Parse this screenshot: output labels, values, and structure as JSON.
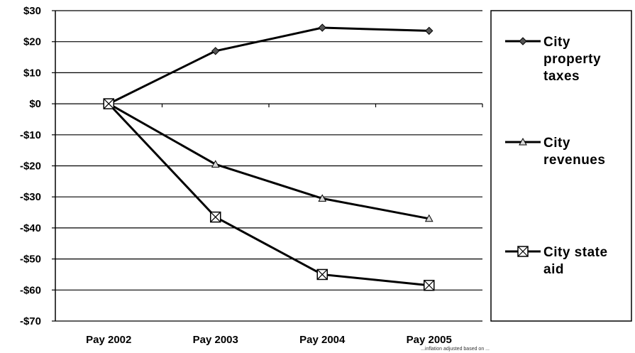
{
  "chart_data": {
    "type": "line",
    "categories": [
      "Pay 2002",
      "Pay 2003",
      "Pay 2004",
      "Pay 2005"
    ],
    "series": [
      {
        "name": "City property taxes",
        "legend_lines": [
          "City",
          "property",
          "taxes"
        ],
        "marker": "diamond",
        "values": [
          0,
          17,
          24.5,
          23.5
        ]
      },
      {
        "name": "City revenues",
        "legend_lines": [
          "City",
          "revenues"
        ],
        "marker": "triangle",
        "values": [
          0,
          -19.5,
          -30.5,
          -37
        ]
      },
      {
        "name": "City state aid",
        "legend_lines": [
          "City state",
          "aid"
        ],
        "marker": "box-x",
        "values": [
          0,
          -36.5,
          -55,
          -58.5
        ]
      }
    ],
    "ylim": [
      -70,
      30
    ],
    "yticks": [
      30,
      20,
      10,
      0,
      -10,
      -20,
      -30,
      -40,
      -50,
      -60,
      -70
    ],
    "ytick_labels": [
      "$30",
      "$20",
      "$10",
      "$0",
      "-$10",
      "-$20",
      "-$30",
      "-$40",
      "-$50",
      "-$60",
      "-$70"
    ],
    "grid": true,
    "legend_position": "right",
    "line_color": "#000000",
    "footnote": "...inflation adjusted based on ..."
  }
}
